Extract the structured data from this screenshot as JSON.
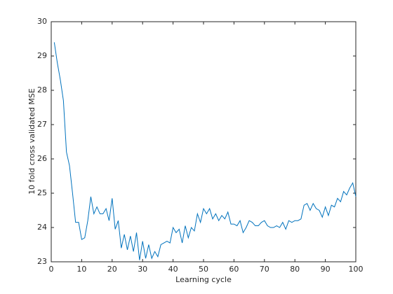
{
  "chart_data": {
    "type": "line",
    "x_label": "Learning cycle",
    "y_label": "10 fold cross validated MSE",
    "x": [
      1,
      2,
      3,
      4,
      5,
      6,
      7,
      8,
      9,
      10,
      11,
      12,
      13,
      14,
      15,
      16,
      17,
      18,
      19,
      20,
      21,
      22,
      23,
      24,
      25,
      26,
      27,
      28,
      29,
      30,
      31,
      32,
      33,
      34,
      35,
      36,
      37,
      38,
      39,
      40,
      41,
      42,
      43,
      44,
      45,
      46,
      47,
      48,
      49,
      50,
      51,
      52,
      53,
      54,
      55,
      56,
      57,
      58,
      59,
      60,
      61,
      62,
      63,
      64,
      65,
      66,
      67,
      68,
      69,
      70,
      71,
      72,
      73,
      74,
      75,
      76,
      77,
      78,
      79,
      80,
      81,
      82,
      83,
      84,
      85,
      86,
      87,
      88,
      89,
      90,
      91,
      92,
      93,
      94,
      95,
      96,
      97,
      98,
      99,
      100
    ],
    "series": [
      {
        "name": "MSE",
        "color": "#0072bd",
        "values": [
          29.4,
          28.8,
          28.3,
          27.7,
          26.2,
          25.8,
          25.0,
          24.15,
          24.15,
          23.65,
          23.7,
          24.2,
          24.9,
          24.4,
          24.6,
          24.4,
          24.4,
          24.55,
          24.2,
          24.85,
          23.95,
          24.2,
          23.4,
          23.8,
          23.35,
          23.75,
          23.3,
          23.85,
          23.05,
          23.6,
          23.1,
          23.5,
          23.1,
          23.3,
          23.15,
          23.5,
          23.55,
          23.6,
          23.55,
          24.0,
          23.85,
          23.95,
          23.55,
          24.05,
          23.7,
          24.0,
          23.9,
          24.4,
          24.15,
          24.55,
          24.4,
          24.55,
          24.25,
          24.4,
          24.2,
          24.35,
          24.25,
          24.45,
          24.1,
          24.1,
          24.05,
          24.2,
          23.85,
          24.0,
          24.2,
          24.15,
          24.05,
          24.05,
          24.15,
          24.2,
          24.05,
          24.0,
          24.0,
          24.05,
          24.0,
          24.15,
          23.95,
          24.2,
          24.15,
          24.2,
          24.2,
          24.25,
          24.65,
          24.7,
          24.5,
          24.7,
          24.55,
          24.5,
          24.3,
          24.6,
          24.35,
          24.65,
          24.6,
          24.85,
          24.75,
          25.05,
          24.95,
          25.15,
          25.3,
          24.9
        ]
      }
    ],
    "xlim": [
      0,
      100
    ],
    "ylim": [
      23,
      30
    ],
    "xticks": [
      0,
      10,
      20,
      30,
      40,
      50,
      60,
      70,
      80,
      90,
      100
    ],
    "yticks": [
      23,
      24,
      25,
      26,
      27,
      28,
      29,
      30
    ]
  }
}
